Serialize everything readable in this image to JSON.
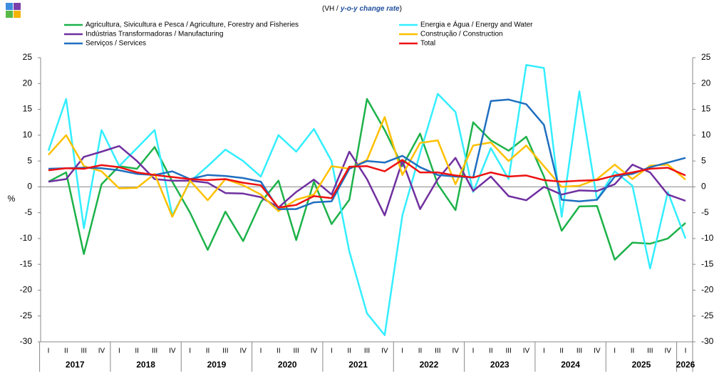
{
  "chart_data": {
    "type": "line",
    "title": "(VH /",
    "title_emphasis": "y-o-y change rate",
    "title_end": ")",
    "y_label": "%",
    "categories": [
      "I",
      "II",
      "III",
      "IV",
      "I",
      "II",
      "III",
      "IV",
      "I",
      "II",
      "III",
      "IV",
      "I",
      "II",
      "III",
      "IV",
      "I",
      "II",
      "III",
      "IV",
      "I",
      "II",
      "III",
      "IV",
      "I",
      "II",
      "III",
      "IV",
      "I",
      "II",
      "III",
      "IV",
      "I",
      "II",
      "III",
      "IV",
      "I"
    ],
    "years": [
      "2017",
      "2018",
      "2019",
      "2020",
      "2021",
      "2022",
      "2023",
      "2024",
      "2025",
      "2026"
    ],
    "ylim": [
      -30,
      25
    ],
    "yticks": [
      -30,
      -25,
      -20,
      -15,
      -10,
      -5,
      0,
      5,
      10,
      15,
      20,
      25
    ],
    "grid": false,
    "series": [
      {
        "name": "Agricultura, Sivicultura e Pesca / Agriculture, Forestry and Fisheries",
        "color": "#1db24a",
        "values": [
          1,
          2.8,
          -13,
          0.5,
          4,
          3.5,
          7.7,
          1,
          -5,
          -12.2,
          -4.8,
          -10.5,
          -3,
          1.2,
          -10.3,
          1,
          -7.2,
          -2.5,
          17,
          11,
          4,
          10.3,
          0.5,
          -4.5,
          12.5,
          9,
          7,
          9.7,
          2,
          -8.5,
          -3.8,
          -3.7,
          -14.1,
          -10.8,
          -11,
          -10,
          -7
        ]
      },
      {
        "name": "Energia e Água / Energy and Water",
        "color": "#33eeff",
        "values": [
          7,
          17,
          -8,
          11,
          4,
          7.5,
          11,
          -5.5,
          1,
          4,
          7.2,
          5,
          2,
          10,
          6.8,
          11.2,
          5,
          -12.5,
          -24.5,
          -28.7,
          -5.5,
          6.5,
          18,
          14.5,
          -1,
          7.5,
          1.5,
          23.6,
          23,
          -5.8,
          18.5,
          -2.5,
          3,
          0.2,
          -15.8,
          -1,
          -10
        ]
      },
      {
        "name": "Indústrias Transformadoras / Manufacturing",
        "color": "#7030a0",
        "values": [
          1,
          1.5,
          5.8,
          6.8,
          7.9,
          5,
          1.5,
          1.2,
          1.2,
          0.8,
          -1.2,
          -1.3,
          -2,
          -4,
          -1,
          1.4,
          -1.5,
          6.8,
          1.5,
          -5.5,
          5,
          -4.3,
          1.5,
          5.6,
          -0.8,
          2,
          -1.8,
          -2.6,
          0,
          -1.5,
          -0.7,
          -0.8,
          0.5,
          4.3,
          2.8,
          -1.5,
          -2.7
        ]
      },
      {
        "name": "Construção / Construction",
        "color": "#ffc000",
        "values": [
          6.2,
          10,
          4,
          3,
          -0.3,
          -0.2,
          2.5,
          -5.8,
          1.2,
          -2.6,
          1.5,
          0.3,
          -1.5,
          -4.7,
          -2.5,
          -1.5,
          4,
          3.5,
          5.2,
          13.5,
          2.3,
          8.5,
          9,
          0.5,
          8,
          8.6,
          5,
          8,
          4,
          0,
          0.2,
          1.5,
          4.3,
          1.5,
          4.1,
          4.3,
          1.4
        ]
      },
      {
        "name": "Serviços / Services",
        "color": "#1f6fc0",
        "values": [
          3.5,
          3.6,
          3.7,
          3.6,
          3.2,
          2.5,
          2.3,
          3,
          1.5,
          2.3,
          2.1,
          1.7,
          1,
          -4.3,
          -4.3,
          -3,
          -2.8,
          3.5,
          5,
          4.7,
          6,
          3.8,
          2.3,
          2,
          1.8,
          16.6,
          16.9,
          16,
          12,
          -2.5,
          -2.8,
          -2.5,
          2,
          2.5,
          3.8,
          4.7,
          5.6
        ]
      },
      {
        "name": "Total",
        "color": "#ee1111",
        "values": [
          3.2,
          3.6,
          3.5,
          4.2,
          3.8,
          2.8,
          2.3,
          1.9,
          1.5,
          1.3,
          1.5,
          0.8,
          0.3,
          -4,
          -3.5,
          -1.8,
          -2.2,
          3.9,
          4,
          3,
          5.2,
          2.8,
          2.8,
          2.2,
          1.8,
          2.8,
          2,
          2.2,
          1.3,
          1,
          1.2,
          1.3,
          2.2,
          2.8,
          3.5,
          3.7,
          2.2
        ]
      }
    ]
  }
}
